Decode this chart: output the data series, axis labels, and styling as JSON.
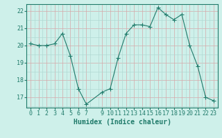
{
  "x": [
    0,
    1,
    2,
    3,
    4,
    5,
    6,
    7,
    9,
    10,
    11,
    12,
    13,
    14,
    15,
    16,
    17,
    18,
    19,
    20,
    21,
    22,
    23
  ],
  "y": [
    20.1,
    20.0,
    20.0,
    20.1,
    20.7,
    19.4,
    17.5,
    16.6,
    17.3,
    17.5,
    19.3,
    20.7,
    21.2,
    21.2,
    21.1,
    22.2,
    21.8,
    21.5,
    21.8,
    20.0,
    18.8,
    17.0,
    16.8
  ],
  "line_color": "#1f7a6a",
  "marker": "+",
  "marker_size": 4,
  "bg_color": "#cef0ea",
  "grid_major_color": "#b0d8d2",
  "grid_pink_color": "#d4a8a8",
  "xlabel": "Humidex (Indice chaleur)",
  "xlim": [
    -0.5,
    23.5
  ],
  "ylim": [
    16.4,
    22.4
  ],
  "yticks": [
    17,
    18,
    19,
    20,
    21,
    22
  ],
  "xticks": [
    0,
    1,
    2,
    3,
    4,
    5,
    6,
    7,
    9,
    10,
    11,
    12,
    13,
    14,
    15,
    16,
    17,
    18,
    19,
    20,
    21,
    22,
    23
  ],
  "axis_color": "#1f7a6a",
  "tick_color": "#1f7a6a",
  "label_fontsize": 7,
  "tick_fontsize": 6
}
